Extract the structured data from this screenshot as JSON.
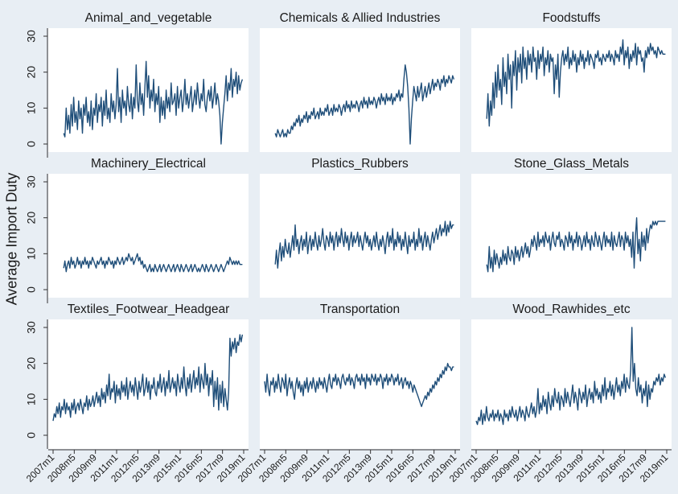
{
  "chart_data": {
    "type": "line",
    "ylabel": "Average Import Duty",
    "line_color": "#1f4e79",
    "panel_bg": "#ffffff",
    "header_bg": "#e8eef4",
    "figure_bg": "#e8eef4",
    "yticks": [
      0,
      10,
      20,
      30
    ],
    "xticks": [
      "2007m1",
      "2008m5",
      "2009m9",
      "2011m1",
      "2012m5",
      "2013m9",
      "2015m1",
      "2016m5",
      "2017m9",
      "2019m1"
    ],
    "ylim": [
      0,
      30
    ],
    "xlim_months": [
      "2007m1",
      "2019m1"
    ],
    "panels": [
      {
        "title": "Animal_and_vegetable",
        "x_start": "2007m9",
        "x_end": "2018m12",
        "y": [
          3,
          2,
          10,
          4,
          8,
          3,
          11,
          5,
          13,
          6,
          9,
          4,
          12,
          7,
          10,
          3,
          11,
          8,
          13,
          6,
          9,
          5,
          12,
          4,
          10,
          8,
          14,
          6,
          11,
          9,
          13,
          5,
          12,
          8,
          15,
          7,
          10,
          6,
          14,
          9,
          12,
          7,
          11,
          21,
          9,
          13,
          6,
          15,
          10,
          12,
          8,
          16,
          11,
          9,
          14,
          7,
          13,
          10,
          22,
          12,
          9,
          17,
          11,
          14,
          8,
          16,
          23,
          13,
          19,
          10,
          15,
          12,
          18,
          9,
          14,
          11,
          16,
          6,
          13,
          8,
          12,
          7,
          15,
          10,
          13,
          9,
          17,
          11,
          12,
          14,
          8,
          16,
          10,
          13,
          15,
          9,
          12,
          18,
          11,
          14,
          10,
          13,
          16,
          9,
          12,
          15,
          11,
          17,
          13,
          10,
          14,
          12,
          18,
          11,
          9,
          13,
          15,
          12,
          16,
          10,
          13,
          17,
          11,
          14,
          12,
          8,
          0,
          6,
          10,
          14,
          19,
          12,
          17,
          15,
          21,
          13,
          18,
          16,
          20,
          14,
          19,
          15,
          17,
          18
        ]
      },
      {
        "title": "Chemicals & Allied Industries",
        "x_start": "2007m9",
        "x_end": "2018m12",
        "y": [
          3,
          2,
          4,
          3,
          2,
          3,
          4,
          2,
          3,
          2,
          4,
          3,
          3,
          5,
          4,
          6,
          5,
          7,
          6,
          8,
          5,
          7,
          6,
          8,
          7,
          9,
          6,
          8,
          7,
          9,
          8,
          10,
          7,
          8,
          9,
          7,
          10,
          8,
          9,
          8,
          10,
          9,
          11,
          8,
          9,
          10,
          8,
          11,
          9,
          10,
          9,
          11,
          10,
          8,
          10,
          11,
          9,
          12,
          10,
          11,
          9,
          12,
          10,
          11,
          10,
          12,
          11,
          9,
          11,
          12,
          10,
          13,
          11,
          12,
          10,
          13,
          11,
          12,
          11,
          13,
          12,
          10,
          12,
          13,
          11,
          14,
          12,
          13,
          11,
          14,
          12,
          13,
          12,
          14,
          11,
          13,
          12,
          14,
          13,
          15,
          12,
          14,
          13,
          18,
          22,
          20,
          16,
          10,
          0,
          7,
          12,
          16,
          14,
          12,
          16,
          13,
          15,
          17,
          12,
          14,
          16,
          13,
          15,
          17,
          14,
          16,
          18,
          15,
          17,
          16,
          18,
          17,
          15,
          18,
          17,
          19,
          16,
          18,
          17,
          19,
          18,
          17,
          19,
          18
        ]
      },
      {
        "title": "Foodstuffs",
        "x_start": "2007m9",
        "x_end": "2018m12",
        "y": [
          7,
          14,
          5,
          12,
          8,
          17,
          10,
          20,
          13,
          22,
          15,
          18,
          11,
          24,
          16,
          20,
          14,
          25,
          18,
          22,
          10,
          23,
          19,
          26,
          15,
          24,
          20,
          25,
          17,
          27,
          21,
          24,
          18,
          26,
          22,
          25,
          20,
          27,
          23,
          24,
          18,
          26,
          21,
          25,
          23,
          27,
          19,
          24,
          22,
          26,
          20,
          25,
          23,
          24,
          14,
          22,
          18,
          25,
          13,
          20,
          24,
          26,
          22,
          25,
          23,
          27,
          21,
          24,
          22,
          26,
          23,
          25,
          20,
          24,
          22,
          26,
          23,
          25,
          21,
          24,
          23,
          26,
          22,
          25,
          24,
          23,
          21,
          25,
          24,
          26,
          23,
          24,
          22,
          25,
          24,
          23,
          25,
          24,
          26,
          23,
          25,
          24,
          22,
          26,
          24,
          25,
          23,
          27,
          25,
          29,
          22,
          26,
          24,
          27,
          21,
          25,
          23,
          26,
          24,
          28,
          22,
          27,
          25,
          26,
          23,
          24,
          20,
          26,
          24,
          27,
          25,
          28,
          26,
          27,
          25,
          26,
          24,
          27,
          26,
          25,
          26,
          25,
          25,
          25
        ]
      },
      {
        "title": "Machinery_Electrical",
        "x_start": "2007m9",
        "x_end": "2018m12",
        "y": [
          6,
          8,
          5,
          7,
          8,
          6,
          9,
          7,
          8,
          6,
          7,
          9,
          7,
          8,
          6,
          8,
          7,
          9,
          7,
          8,
          6,
          8,
          7,
          9,
          8,
          7,
          6,
          8,
          7,
          8,
          9,
          7,
          8,
          6,
          8,
          7,
          9,
          8,
          7,
          8,
          6,
          8,
          7,
          9,
          8,
          7,
          8,
          9,
          7,
          8,
          9,
          8,
          10,
          9,
          8,
          9,
          7,
          8,
          9,
          10,
          8,
          9,
          7,
          8,
          6,
          7,
          6,
          5,
          6,
          7,
          5,
          6,
          5,
          7,
          6,
          5,
          6,
          7,
          5,
          6,
          7,
          6,
          5,
          6,
          7,
          6,
          5,
          6,
          7,
          5,
          6,
          7,
          6,
          5,
          7,
          6,
          5,
          6,
          7,
          6,
          5,
          6,
          7,
          5,
          6,
          7,
          6,
          5,
          6,
          5,
          6,
          7,
          6,
          5,
          7,
          6,
          5,
          6,
          7,
          6,
          5,
          6,
          7,
          6,
          5,
          6,
          7,
          6,
          5,
          6,
          7,
          8,
          7,
          9,
          8,
          7,
          8,
          7,
          8,
          7,
          8,
          7,
          7,
          7
        ]
      },
      {
        "title": "Plastics_Rubbers",
        "x_start": "2007m9",
        "x_end": "2018m12",
        "y": [
          7,
          11,
          6,
          10,
          13,
          8,
          12,
          9,
          14,
          11,
          10,
          13,
          9,
          12,
          15,
          11,
          18,
          12,
          14,
          10,
          13,
          15,
          11,
          14,
          12,
          16,
          10,
          13,
          15,
          11,
          14,
          12,
          16,
          13,
          11,
          15,
          12,
          14,
          17,
          13,
          11,
          15,
          14,
          12,
          16,
          13,
          15,
          11,
          14,
          16,
          12,
          15,
          13,
          17,
          14,
          12,
          16,
          13,
          15,
          11,
          14,
          16,
          12,
          15,
          13,
          14,
          16,
          12,
          15,
          13,
          11,
          14,
          16,
          13,
          15,
          12,
          14,
          11,
          13,
          15,
          12,
          16,
          13,
          11,
          14,
          12,
          15,
          13,
          10,
          14,
          16,
          12,
          15,
          13,
          17,
          11,
          14,
          12,
          16,
          13,
          15,
          11,
          14,
          12,
          16,
          13,
          10,
          15,
          12,
          14,
          13,
          16,
          11,
          14,
          12,
          17,
          13,
          15,
          11,
          14,
          16,
          12,
          15,
          13,
          11,
          14,
          16,
          13,
          15,
          17,
          14,
          16,
          18,
          15,
          17,
          16,
          19,
          15,
          18,
          16,
          19,
          17,
          18,
          18
        ]
      },
      {
        "title": "Stone_Glass_Metals",
        "x_start": "2007m9",
        "x_end": "2018m12",
        "y": [
          7,
          5,
          12,
          6,
          9,
          5,
          11,
          7,
          10,
          8,
          6,
          9,
          7,
          11,
          8,
          10,
          7,
          12,
          9,
          8,
          11,
          10,
          7,
          12,
          9,
          11,
          8,
          10,
          12,
          9,
          11,
          13,
          10,
          12,
          9,
          11,
          14,
          12,
          15,
          13,
          11,
          16,
          12,
          14,
          13,
          15,
          12,
          16,
          14,
          13,
          15,
          11,
          14,
          16,
          13,
          12,
          15,
          14,
          16,
          12,
          14,
          13,
          11,
          15,
          14,
          12,
          16,
          13,
          15,
          11,
          14,
          13,
          16,
          12,
          15,
          14,
          11,
          13,
          15,
          12,
          16,
          13,
          14,
          11,
          15,
          13,
          12,
          16,
          14,
          12,
          15,
          13,
          11,
          14,
          16,
          12,
          15,
          13,
          14,
          12,
          16,
          11,
          15,
          13,
          12,
          14,
          16,
          12,
          15,
          14,
          11,
          16,
          13,
          15,
          12,
          14,
          9,
          16,
          6,
          15,
          20,
          10,
          14,
          8,
          16,
          12,
          15,
          11,
          17,
          13,
          16,
          18,
          17,
          19,
          18,
          19,
          18,
          19,
          19,
          19,
          19,
          19,
          19,
          19
        ]
      },
      {
        "title": "Textiles_Footwear_Headgear",
        "x_start": "2007m1",
        "x_end": "2018m12",
        "y": [
          4,
          6,
          5,
          8,
          6,
          9,
          5,
          8,
          7,
          10,
          6,
          9,
          7,
          8,
          5,
          9,
          7,
          10,
          6,
          8,
          9,
          7,
          10,
          8,
          6,
          9,
          8,
          11,
          7,
          10,
          8,
          9,
          11,
          8,
          10,
          12,
          9,
          11,
          8,
          13,
          10,
          12,
          9,
          14,
          11,
          17,
          10,
          13,
          12,
          15,
          9,
          14,
          11,
          13,
          10,
          15,
          12,
          14,
          11,
          16,
          10,
          13,
          15,
          12,
          14,
          11,
          16,
          13,
          10,
          15,
          12,
          14,
          17,
          11,
          13,
          16,
          12,
          15,
          10,
          14,
          13,
          16,
          12,
          11,
          15,
          13,
          17,
          12,
          14,
          16,
          11,
          15,
          13,
          18,
          12,
          14,
          16,
          13,
          15,
          11,
          17,
          14,
          12,
          16,
          13,
          19,
          14,
          11,
          16,
          13,
          17,
          12,
          15,
          18,
          13,
          16,
          14,
          19,
          12,
          17,
          15,
          13,
          20,
          14,
          17,
          11,
          16,
          14,
          18,
          8,
          15,
          10,
          16,
          7,
          14,
          9,
          15,
          8,
          13,
          10,
          7,
          12,
          27,
          22,
          26,
          24,
          27,
          23,
          26,
          25,
          28,
          26,
          28
        ]
      },
      {
        "title": "Transportation",
        "x_start": "2007m1",
        "x_end": "2018m12",
        "y": [
          15,
          12,
          17,
          13,
          11,
          15,
          14,
          16,
          12,
          15,
          13,
          17,
          14,
          12,
          16,
          15,
          13,
          17,
          11,
          14,
          16,
          13,
          15,
          12,
          10,
          14,
          16,
          13,
          15,
          12,
          14,
          11,
          15,
          13,
          16,
          12,
          14,
          15,
          13,
          16,
          14,
          12,
          15,
          13,
          16,
          14,
          15,
          13,
          16,
          14,
          12,
          15,
          17,
          14,
          13,
          16,
          15,
          17,
          14,
          16,
          15,
          13,
          16,
          17,
          15,
          14,
          16,
          15,
          17,
          14,
          16,
          15,
          13,
          16,
          17,
          15,
          16,
          14,
          17,
          15,
          16,
          13,
          17,
          15,
          16,
          14,
          17,
          16,
          15,
          17,
          14,
          16,
          15,
          17,
          16,
          13,
          16,
          15,
          17,
          14,
          16,
          15,
          17,
          16,
          14,
          16,
          15,
          17,
          14,
          15,
          16,
          13,
          15,
          16,
          14,
          15,
          13,
          15,
          14,
          12,
          14,
          13,
          12,
          11,
          10,
          9,
          8,
          9,
          10,
          11,
          10,
          12,
          11,
          13,
          12,
          14,
          13,
          15,
          14,
          16,
          15,
          17,
          16,
          18,
          17,
          19,
          18,
          20,
          19,
          19,
          18,
          19,
          19
        ]
      },
      {
        "title": "Wood_Rawhides_etc",
        "x_start": "2007m1",
        "x_end": "2018m12",
        "y": [
          4,
          3,
          5,
          4,
          7,
          3,
          6,
          4,
          8,
          5,
          4,
          6,
          5,
          7,
          4,
          6,
          5,
          7,
          4,
          6,
          5,
          3,
          7,
          5,
          6,
          4,
          7,
          5,
          8,
          6,
          5,
          7,
          4,
          6,
          8,
          5,
          7,
          6,
          4,
          8,
          6,
          5,
          7,
          9,
          6,
          8,
          5,
          7,
          13,
          6,
          9,
          7,
          11,
          8,
          10,
          6,
          12,
          9,
          7,
          11,
          8,
          13,
          10,
          9,
          12,
          7,
          11,
          10,
          8,
          13,
          9,
          12,
          10,
          8,
          11,
          14,
          9,
          12,
          10,
          7,
          13,
          11,
          9,
          12,
          10,
          14,
          8,
          11,
          13,
          10,
          12,
          9,
          15,
          11,
          13,
          10,
          12,
          9,
          14,
          11,
          16,
          10,
          13,
          12,
          15,
          11,
          14,
          10,
          13,
          16,
          12,
          14,
          11,
          15,
          13,
          17,
          12,
          16,
          14,
          13,
          18,
          30,
          15,
          20,
          13,
          11,
          16,
          12,
          14,
          9,
          13,
          11,
          15,
          8,
          14,
          10,
          13,
          12,
          15,
          14,
          16,
          15,
          17,
          14,
          16,
          15,
          17,
          16
        ]
      }
    ]
  }
}
